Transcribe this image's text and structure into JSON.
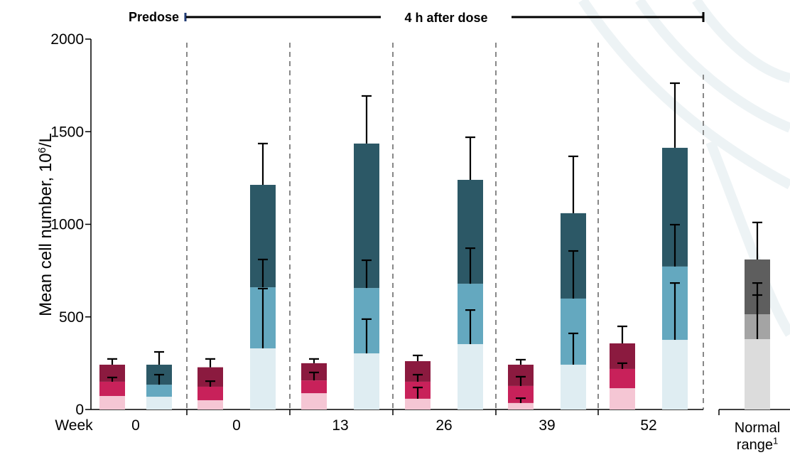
{
  "chart_data": {
    "type": "stacked_bar_error",
    "annotations": [
      "Predose",
      "4 h after dose"
    ],
    "y_label": {
      "text": "Mean cell number, 10",
      "sup": "6",
      "after": "/L"
    },
    "x_label": "Week",
    "footnote_mark": "1",
    "categories": [
      "0",
      "0",
      "13",
      "26",
      "39",
      "52",
      "Normal range"
    ],
    "ylim": [
      0,
      2000
    ],
    "yticks": [
      0,
      500,
      1000,
      1500,
      2000
    ],
    "stacks": [
      {
        "series": [
          {
            "color": "#f5c6d4",
            "values": [
              73,
              50,
              88,
              58,
              35,
              115,
              null
            ],
            "errors": [
              null,
              null,
              null,
              61,
              26,
              null,
              null
            ]
          },
          {
            "color": "#c8215a",
            "values": [
              77,
              73,
              69,
              92,
              92,
              104,
              null
            ],
            "errors": [
              23,
              30,
              43,
              38,
              50,
              31,
              null
            ]
          },
          {
            "color": "#8b1a3f",
            "values": [
              92,
              105,
              93,
              111,
              115,
              138,
              null
            ],
            "errors": [
              31,
              45,
              23,
              31,
              27,
              92,
              null
            ]
          }
        ]
      },
      {
        "series": [
          {
            "color": "#dfedf2",
            "values": [
              69,
              330,
              303,
              353,
              242,
              376,
              null
            ],
            "errors": [
              null,
              323,
              185,
              184,
              169,
              307,
              null
            ]
          },
          {
            "color": "#64a8bf",
            "values": [
              65,
              330,
              353,
              326,
              357,
              396,
              null
            ],
            "errors": [
              54,
              150,
              150,
              192,
              257,
              226,
              null
            ]
          },
          {
            "color": "#2c5866",
            "values": [
              108,
              553,
              780,
              561,
              461,
              641,
              null
            ],
            "errors": [
              69,
              223,
              257,
              230,
              307,
              349,
              null
            ]
          }
        ]
      },
      {
        "series": [
          {
            "color": "#dcdcdc",
            "values": [
              null,
              null,
              null,
              null,
              null,
              null,
              380
            ],
            "errors": [
              null,
              null,
              null,
              null,
              null,
              null,
              238
            ]
          },
          {
            "color": "#a4a4a4",
            "values": [
              null,
              null,
              null,
              null,
              null,
              null,
              134
            ],
            "errors": [
              null,
              null,
              null,
              null,
              null,
              null,
              169
            ]
          },
          {
            "color": "#5e5e5e",
            "values": [
              null,
              null,
              null,
              null,
              null,
              null,
              296
            ],
            "errors": [
              null,
              null,
              null,
              null,
              null,
              null,
              200
            ]
          }
        ]
      }
    ]
  }
}
